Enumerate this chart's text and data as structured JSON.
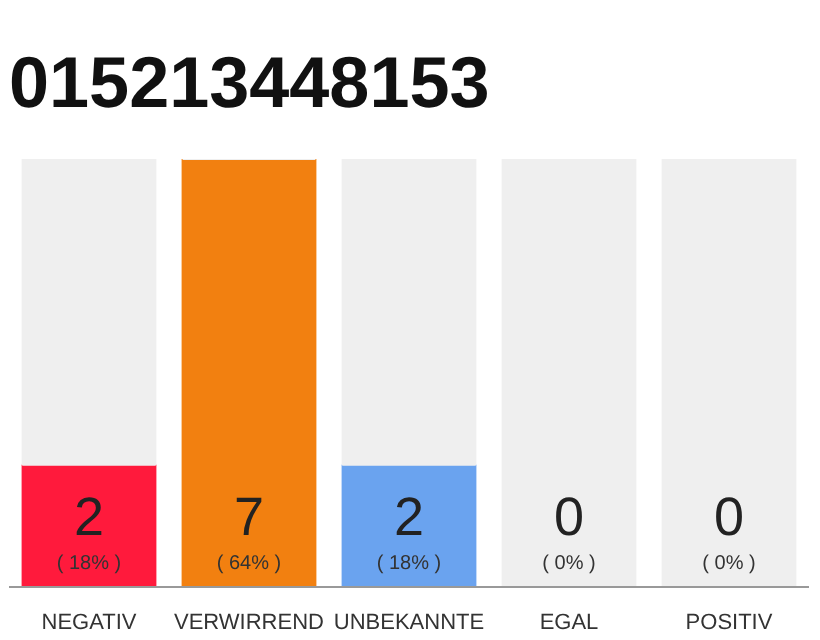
{
  "chart_data": {
    "type": "bar",
    "title": "015213448153",
    "categories": [
      "NEGATIV",
      "VERWIRREND",
      "UNBEKANNTE",
      "EGAL",
      "POSITIV"
    ],
    "stacked": true,
    "tick_labels": "x",
    "grid": false,
    "series": [
      {
        "colors": [
          "#ff1a3c",
          "#f28010",
          "#6aa3ef",
          "#efefef",
          "#efefef"
        ],
        "values": [
          2,
          7,
          2,
          0,
          0
        ],
        "value_labels": [
          "2\n( 18% )",
          "7\n( 64% )",
          "2\n( 18% )",
          "0\n( 0% )",
          "0\n( 0% )"
        ]
      },
      {
        "color": "#efefef",
        "values": [
          5,
          0,
          5,
          7,
          7
        ]
      }
    ]
  }
}
